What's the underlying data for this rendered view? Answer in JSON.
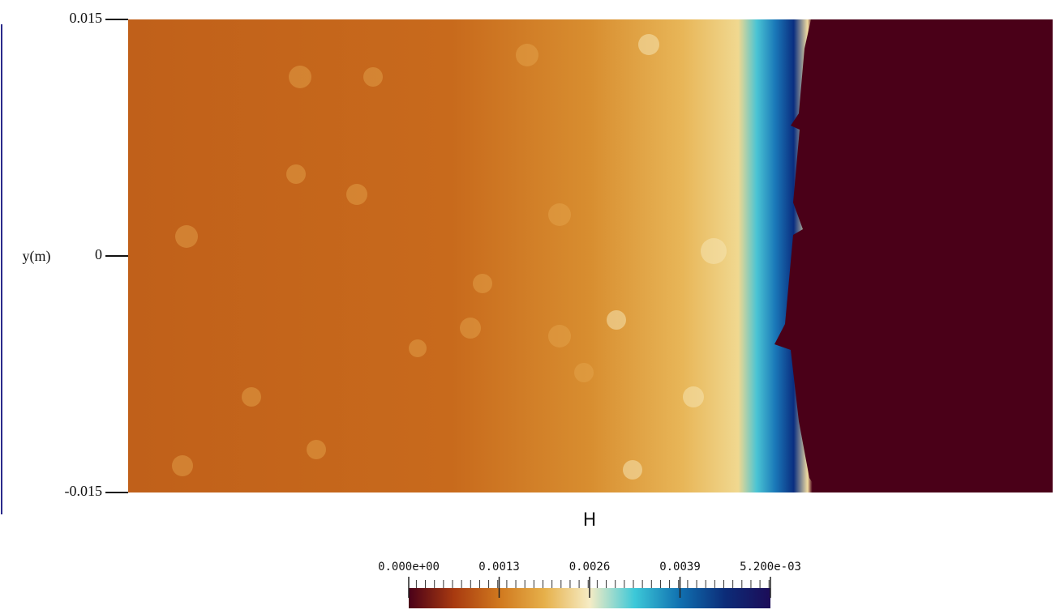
{
  "chart_data": {
    "type": "field",
    "ylabel": "y(m)",
    "ylim": [
      -0.015,
      0.015
    ],
    "yticks": [
      -0.015,
      0,
      0.015
    ],
    "colorbar": {
      "title": "H",
      "clim": [
        0,
        0.0052
      ],
      "ticks": [
        {
          "value": 0,
          "label": "0.000e+00"
        },
        0.0013,
        0.0026,
        0.0039,
        {
          "value": 0.0052,
          "label": "5.200e-03"
        }
      ],
      "colormap": [
        "#4a0018",
        "#a83a10",
        "#d0781e",
        "#e6b04a",
        "#f6ecc4",
        "#3cc8d8",
        "#1070b0",
        "#0c2c78",
        "#1c0c58"
      ]
    }
  }
}
